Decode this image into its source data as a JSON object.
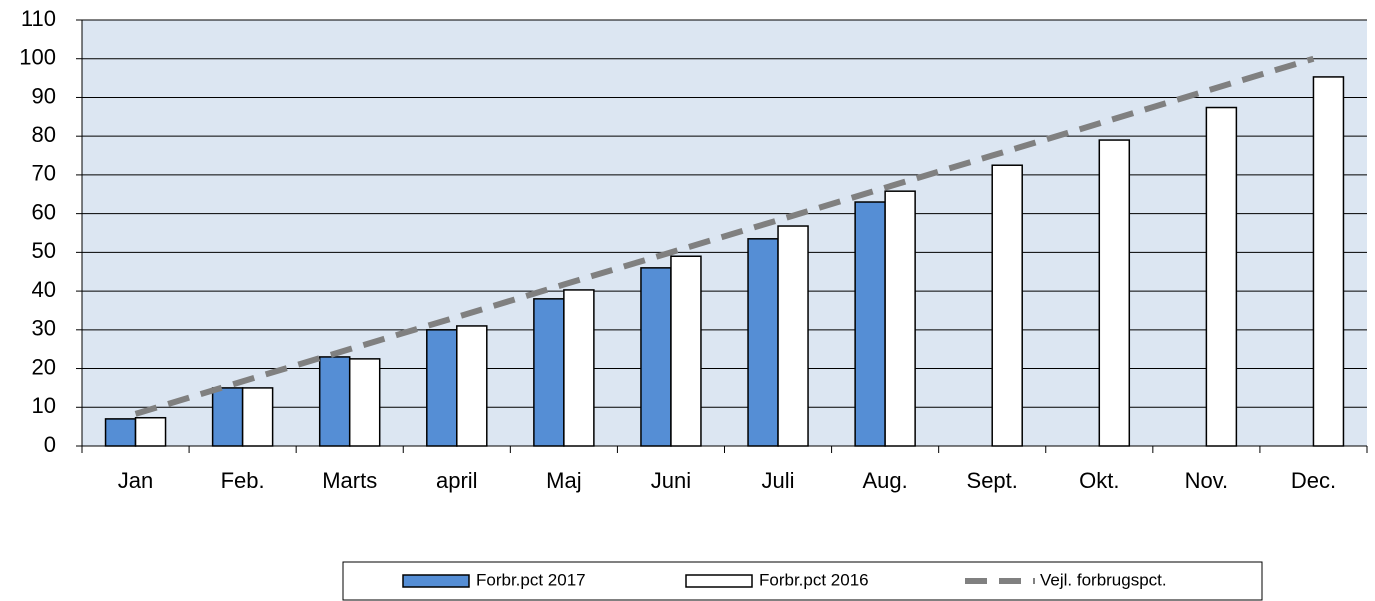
{
  "chart_data": {
    "type": "bar",
    "categories": [
      "Jan",
      "Feb.",
      "Marts",
      "april",
      "Maj",
      "Juni",
      "Juli",
      "Aug.",
      "Sept.",
      "Okt.",
      "Nov.",
      "Dec."
    ],
    "series": [
      {
        "name": "Forbr.pct 2017",
        "type": "bar",
        "color": "#558ed5",
        "values": [
          7,
          15,
          23,
          30,
          38,
          46,
          53.5,
          63,
          null,
          null,
          null,
          null
        ]
      },
      {
        "name": "Forbr.pct 2016",
        "type": "bar",
        "color": "#ffffff",
        "values": [
          7.3,
          15,
          22.5,
          31,
          40.3,
          49,
          56.8,
          65.8,
          72.5,
          79,
          87.4,
          95.3
        ]
      },
      {
        "name": "Vejl. forbrugspct.",
        "type": "line",
        "color": "#808080",
        "values": [
          8.3,
          16.7,
          25,
          33.3,
          41.7,
          50,
          58.3,
          66.7,
          75,
          83.3,
          91.7,
          100
        ]
      }
    ],
    "ylim": [
      0,
      110
    ],
    "yticks": [
      0,
      10,
      20,
      30,
      40,
      50,
      60,
      70,
      80,
      90,
      100,
      110
    ],
    "grid": true,
    "plot_background": "#dce6f2",
    "legend": "bottom"
  }
}
